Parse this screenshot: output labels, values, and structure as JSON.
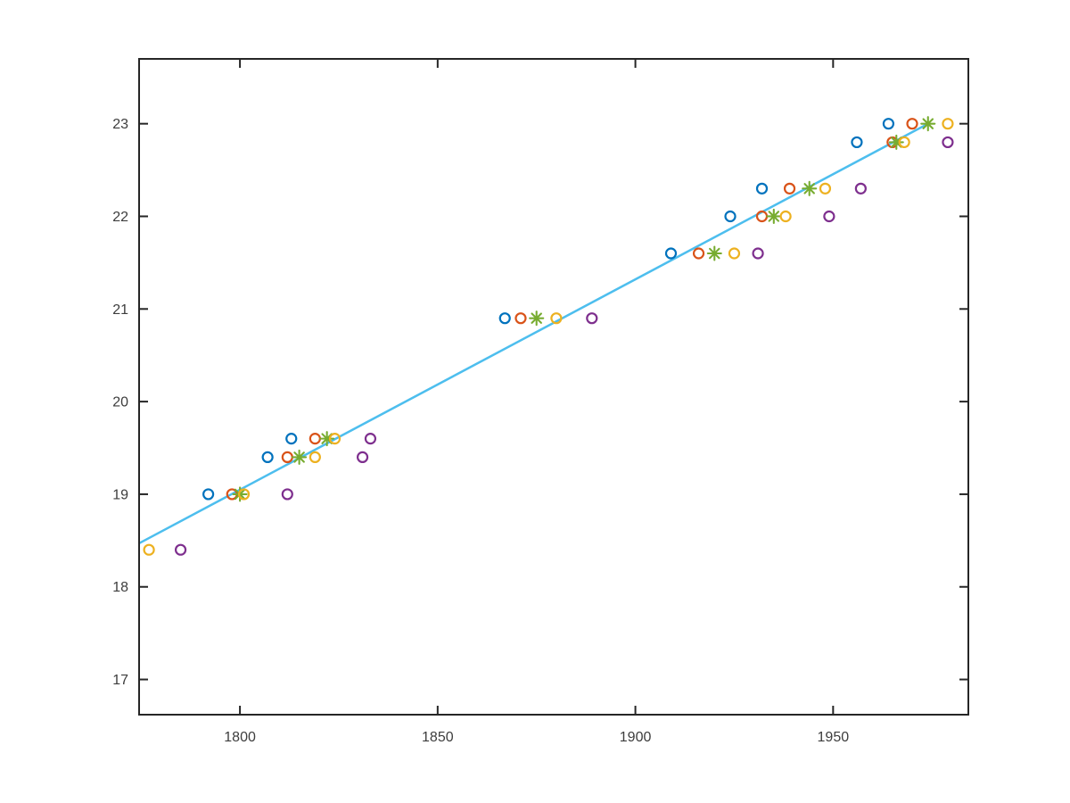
{
  "figure": {
    "background_color": "#ffffff",
    "axes_color": "#262626",
    "tick_label_color": "#3d3d3d"
  },
  "chart_data": {
    "type": "scatter",
    "title": "",
    "xlabel": "",
    "ylabel": "",
    "grid": false,
    "legend": "none",
    "box": true,
    "tick_direction": "in",
    "xlim": [
      1774.5,
      1984.2
    ],
    "ylim": [
      16.62,
      23.7
    ],
    "xticks": [
      1800,
      1850,
      1900,
      1950
    ],
    "yticks": [
      17,
      18,
      19,
      20,
      21,
      22,
      23
    ],
    "series": [
      {
        "name": "series-1-blue-circles",
        "marker": "circle",
        "color": "#0072BD",
        "points": [
          [
            1792,
            19.0
          ],
          [
            1807,
            19.4
          ],
          [
            1813,
            19.6
          ],
          [
            1867,
            20.9
          ],
          [
            1909,
            21.6
          ],
          [
            1924,
            22.0
          ],
          [
            1932,
            22.3
          ],
          [
            1956,
            22.8
          ],
          [
            1964,
            23.0
          ]
        ]
      },
      {
        "name": "series-2-orange-circles",
        "marker": "circle",
        "color": "#D95319",
        "points": [
          [
            1798,
            19.0
          ],
          [
            1812,
            19.4
          ],
          [
            1819,
            19.6
          ],
          [
            1871,
            20.9
          ],
          [
            1916,
            21.6
          ],
          [
            1932,
            22.0
          ],
          [
            1939,
            22.3
          ],
          [
            1965,
            22.8
          ],
          [
            1970,
            23.0
          ]
        ]
      },
      {
        "name": "series-3-green-asterisks",
        "marker": "asterisk",
        "color": "#77AC30",
        "points": [
          [
            1800,
            19.0
          ],
          [
            1815,
            19.4
          ],
          [
            1822,
            19.6
          ],
          [
            1875,
            20.9
          ],
          [
            1920,
            21.6
          ],
          [
            1935,
            22.0
          ],
          [
            1944,
            22.3
          ],
          [
            1966,
            22.8
          ],
          [
            1974,
            23.0
          ]
        ]
      },
      {
        "name": "series-4-yellow-circles",
        "marker": "circle",
        "color": "#EDB120",
        "points": [
          [
            1777,
            18.4
          ],
          [
            1801,
            19.0
          ],
          [
            1819,
            19.4
          ],
          [
            1824,
            19.6
          ],
          [
            1880,
            20.9
          ],
          [
            1925,
            21.6
          ],
          [
            1938,
            22.0
          ],
          [
            1948,
            22.3
          ],
          [
            1968,
            22.8
          ],
          [
            1979,
            23.0
          ]
        ]
      },
      {
        "name": "series-5-purple-circles",
        "marker": "circle",
        "color": "#7E2F8E",
        "points": [
          [
            1785,
            18.4
          ],
          [
            1812,
            19.0
          ],
          [
            1831,
            19.4
          ],
          [
            1833,
            19.6
          ],
          [
            1889,
            20.9
          ],
          [
            1931,
            21.6
          ],
          [
            1949,
            22.0
          ],
          [
            1957,
            22.3
          ],
          [
            1979,
            22.8
          ]
        ]
      }
    ],
    "fit_line": {
      "name": "linear-fit-line",
      "color": "#4DBEEE",
      "points": [
        [
          1774.5,
          18.47
        ],
        [
          1974,
          23.0
        ]
      ]
    }
  }
}
